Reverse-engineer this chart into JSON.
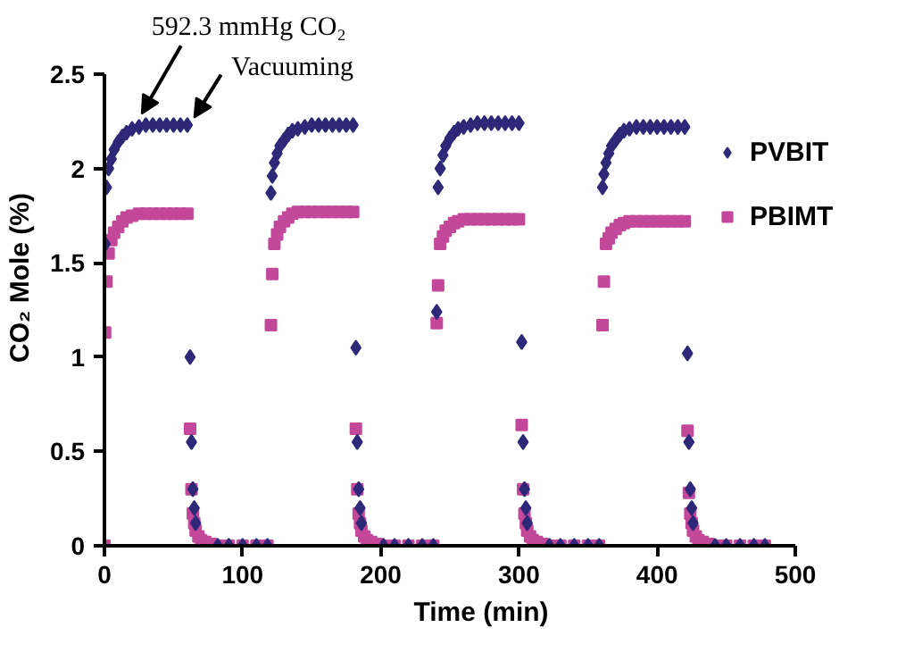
{
  "chart_data": {
    "type": "scatter",
    "xlabel": "Time (min)",
    "ylabel": "CO₂ Mole (%)",
    "xlim": [
      0,
      500
    ],
    "xticks": [
      0,
      100,
      200,
      300,
      400,
      500
    ],
    "ylim": [
      0,
      2.5
    ],
    "yticks": [
      0,
      0.5,
      1,
      1.5,
      2,
      2.5
    ],
    "grid": false,
    "legend": "top right",
    "annotations": [
      {
        "text": "592.3 mmHg CO₂",
        "x": 27,
        "y": 2.29
      },
      {
        "text": "Vacuuming",
        "x": 65,
        "y": 2.27
      }
    ],
    "series": [
      {
        "name": "PVBIT",
        "color": "#2e2878",
        "marker": "diamond",
        "x": [
          0.5,
          1.5,
          3,
          5,
          7,
          10,
          13,
          16,
          20,
          25,
          30,
          35,
          40,
          45,
          50,
          55,
          60,
          62,
          63,
          64,
          65,
          66,
          82,
          90,
          100,
          110,
          118,
          120.5,
          121.5,
          123,
          125,
          127,
          130,
          133,
          136,
          140,
          145,
          150,
          155,
          160,
          165,
          170,
          175,
          180,
          182,
          183,
          184,
          185,
          186,
          202,
          210,
          220,
          230,
          238,
          240.5,
          241.5,
          243,
          245,
          247,
          250,
          253,
          256,
          260,
          265,
          270,
          275,
          280,
          285,
          290,
          295,
          300,
          302,
          303,
          304,
          305,
          306,
          322,
          330,
          340,
          350,
          358,
          360.5,
          361.5,
          363,
          365,
          367,
          370,
          373,
          376,
          380,
          385,
          390,
          395,
          400,
          405,
          410,
          415,
          420,
          422,
          423,
          424,
          425,
          426,
          442,
          450,
          460,
          470,
          478
        ],
        "values": [
          1.6,
          1.9,
          2.0,
          2.05,
          2.1,
          2.14,
          2.17,
          2.19,
          2.21,
          2.22,
          2.23,
          2.23,
          2.23,
          2.23,
          2.23,
          2.23,
          2.23,
          1.0,
          0.55,
          0.3,
          0.2,
          0.12,
          0,
          0,
          0,
          0,
          0,
          1.87,
          1.96,
          2.03,
          2.08,
          2.12,
          2.15,
          2.18,
          2.2,
          2.21,
          2.22,
          2.23,
          2.23,
          2.23,
          2.23,
          2.23,
          2.23,
          2.23,
          1.05,
          0.55,
          0.3,
          0.2,
          0.12,
          0,
          0,
          0,
          0,
          0,
          1.24,
          1.9,
          2.0,
          2.07,
          2.12,
          2.16,
          2.19,
          2.21,
          2.22,
          2.23,
          2.24,
          2.24,
          2.24,
          2.24,
          2.24,
          2.24,
          2.24,
          1.08,
          0.55,
          0.3,
          0.2,
          0.12,
          0,
          0,
          0,
          0,
          0,
          1.9,
          1.97,
          2.03,
          2.08,
          2.12,
          2.15,
          2.18,
          2.2,
          2.21,
          2.22,
          2.22,
          2.22,
          2.22,
          2.22,
          2.22,
          2.22,
          2.22,
          1.02,
          0.55,
          0.3,
          0.2,
          0.12,
          0,
          0,
          0,
          0,
          0
        ]
      },
      {
        "name": "PBIMT",
        "color": "#c4489a",
        "marker": "square",
        "x": [
          0,
          0.5,
          1.5,
          3,
          5,
          7,
          10,
          13,
          16,
          20,
          25,
          30,
          35,
          40,
          45,
          50,
          55,
          60,
          62,
          63,
          64,
          65,
          66,
          68,
          70,
          73,
          77,
          82,
          90,
          100,
          110,
          118,
          120.5,
          121.5,
          123,
          125,
          127,
          130,
          133,
          136,
          140,
          145,
          150,
          155,
          160,
          165,
          170,
          175,
          180,
          182,
          183,
          184,
          185,
          186,
          188,
          190,
          193,
          197,
          202,
          210,
          220,
          230,
          238,
          240.5,
          241.5,
          243,
          245,
          247,
          250,
          253,
          256,
          260,
          265,
          270,
          275,
          280,
          285,
          290,
          295,
          300,
          302,
          303,
          304,
          305,
          306,
          308,
          310,
          313,
          317,
          322,
          330,
          340,
          350,
          358,
          360.5,
          361.5,
          363,
          365,
          367,
          370,
          373,
          376,
          380,
          385,
          390,
          395,
          400,
          405,
          410,
          415,
          420,
          422,
          423,
          424,
          425,
          426,
          428,
          430,
          433,
          437,
          442,
          450,
          460,
          470,
          478
        ],
        "values": [
          0,
          1.13,
          1.4,
          1.55,
          1.62,
          1.66,
          1.69,
          1.72,
          1.74,
          1.75,
          1.76,
          1.76,
          1.76,
          1.76,
          1.76,
          1.76,
          1.76,
          1.76,
          0.62,
          0.3,
          0.17,
          0.12,
          0.08,
          0.05,
          0.03,
          0.02,
          0.01,
          0,
          0,
          0,
          0,
          0,
          1.17,
          1.44,
          1.6,
          1.65,
          1.69,
          1.72,
          1.74,
          1.76,
          1.77,
          1.77,
          1.77,
          1.77,
          1.77,
          1.77,
          1.77,
          1.77,
          1.77,
          0.62,
          0.3,
          0.17,
          0.12,
          0.08,
          0.05,
          0.03,
          0.02,
          0.01,
          0,
          0,
          0,
          0,
          0,
          1.18,
          1.38,
          1.6,
          1.64,
          1.67,
          1.69,
          1.71,
          1.72,
          1.73,
          1.73,
          1.73,
          1.73,
          1.73,
          1.73,
          1.73,
          1.73,
          1.73,
          0.64,
          0.3,
          0.17,
          0.12,
          0.08,
          0.05,
          0.03,
          0.02,
          0.01,
          0,
          0,
          0,
          0,
          0,
          1.17,
          1.4,
          1.6,
          1.63,
          1.66,
          1.68,
          1.7,
          1.71,
          1.72,
          1.72,
          1.72,
          1.72,
          1.72,
          1.72,
          1.72,
          1.72,
          1.72,
          0.61,
          0.28,
          0.17,
          0.12,
          0.08,
          0.05,
          0.03,
          0.02,
          0.01,
          0,
          0,
          0,
          0,
          0
        ]
      }
    ]
  }
}
